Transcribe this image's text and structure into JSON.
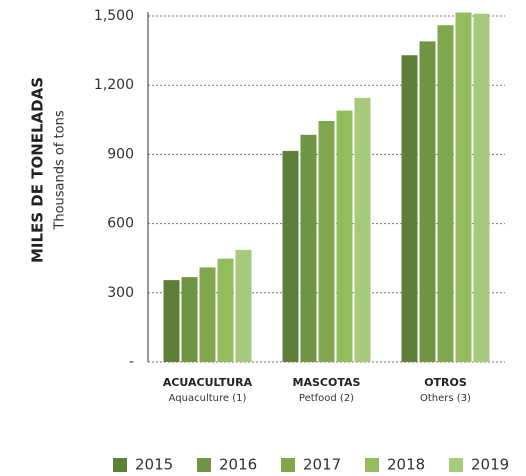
{
  "chart_data": {
    "type": "bar",
    "y_label": "MILES DE TONELADAS",
    "y_sublabel": "Thousands of tons",
    "categories": [
      "ACUACULTURA",
      "MASCOTAS",
      "OTROS"
    ],
    "category_subtitles": [
      "Aquaculture (1)",
      "Petfood (2)",
      "Others (3)"
    ],
    "series": [
      {
        "name": "2015",
        "color": "#5e7f3a",
        "values": [
          355,
          915,
          1330
        ]
      },
      {
        "name": "2016",
        "color": "#6f9443",
        "values": [
          368,
          985,
          1390
        ]
      },
      {
        "name": "2017",
        "color": "#80a74e",
        "values": [
          410,
          1045,
          1460
        ]
      },
      {
        "name": "2018",
        "color": "#93bd5d",
        "values": [
          448,
          1090,
          1515
        ]
      },
      {
        "name": "2019",
        "color": "#a7c97b",
        "values": [
          486,
          1145,
          1510
        ]
      }
    ],
    "ylim": [
      0,
      1500
    ],
    "yticks": [
      {
        "value": 0,
        "label": "-"
      },
      300,
      600,
      900,
      {
        "value": 1200,
        "label": "1,200"
      },
      {
        "value": 1500,
        "label": "1,500"
      }
    ],
    "grid": true,
    "legend": "bottom"
  }
}
